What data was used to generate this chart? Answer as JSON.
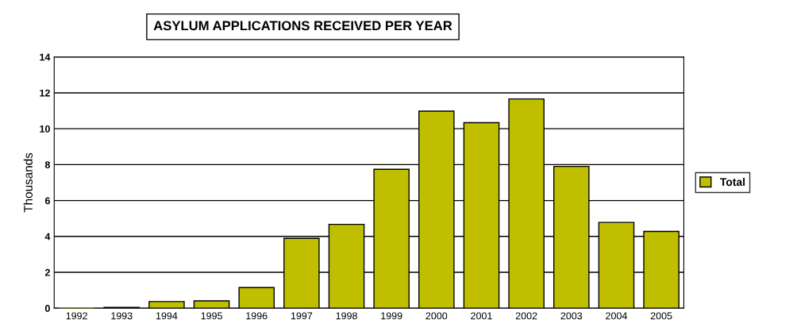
{
  "chart_data": {
    "type": "bar",
    "title": "ASYLUM APPLICATIONS RECEIVED PER YEAR",
    "ylabel": "Thousands",
    "categories": [
      "1992",
      "1993",
      "1994",
      "1995",
      "1996",
      "1997",
      "1998",
      "1999",
      "2000",
      "2001",
      "2002",
      "2003",
      "2004",
      "2005"
    ],
    "series": [
      {
        "name": "Total",
        "color": "#bfbf00",
        "values": [
          0,
          0.05,
          0.37,
          0.41,
          1.15,
          3.89,
          4.67,
          7.74,
          10.98,
          10.34,
          11.66,
          7.9,
          4.78,
          4.28
        ]
      }
    ],
    "ylim": [
      0,
      14
    ],
    "yticks": [
      0,
      2,
      4,
      6,
      8,
      10,
      12,
      14
    ],
    "grid": "y",
    "legend": "right"
  }
}
